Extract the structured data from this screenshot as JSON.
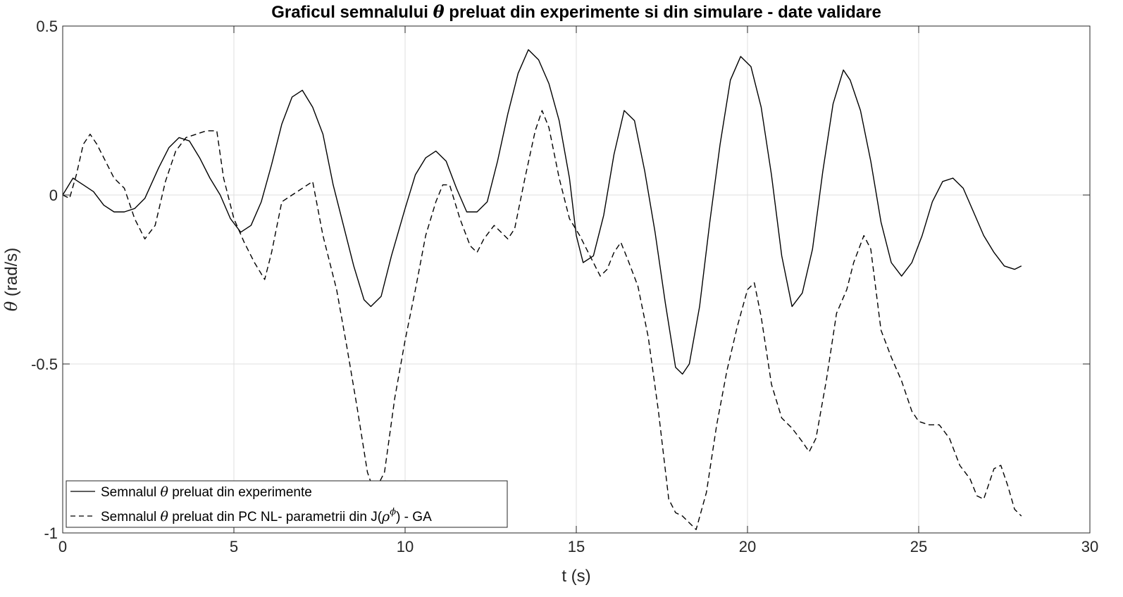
{
  "chart_data": {
    "type": "line",
    "title_parts": {
      "before": "Graficul semnalului ",
      "symbol": "θ",
      "after": " preluat din experimente si din simulare - date validare"
    },
    "xlabel": "t (s)",
    "ylabel_parts": {
      "symbol": "θ",
      "text": " (rad/s)"
    },
    "xlim": [
      0,
      30
    ],
    "ylim": [
      -1,
      0.5
    ],
    "xticks": [
      0,
      5,
      10,
      15,
      20,
      25,
      30
    ],
    "xtick_labels": [
      "0",
      "5",
      "10",
      "15",
      "20",
      "25",
      "30"
    ],
    "yticks": [
      0.5,
      0,
      -0.5,
      -1
    ],
    "ytick_labels": [
      "0.5",
      "0",
      "-0.5",
      "-1"
    ],
    "grid": true,
    "legend_position": "bottom-left",
    "series": [
      {
        "name_parts": {
          "before": "Semnalul ",
          "symbol": "θ",
          "after": " preluat din experimente"
        },
        "color": "#000000",
        "style": "solid",
        "points": [
          [
            0,
            0
          ],
          [
            0.3,
            0.05
          ],
          [
            0.6,
            0.03
          ],
          [
            0.9,
            0.01
          ],
          [
            1.2,
            -0.03
          ],
          [
            1.5,
            -0.05
          ],
          [
            1.8,
            -0.05
          ],
          [
            2.1,
            -0.04
          ],
          [
            2.4,
            -0.01
          ],
          [
            2.8,
            0.08
          ],
          [
            3.1,
            0.14
          ],
          [
            3.4,
            0.17
          ],
          [
            3.7,
            0.16
          ],
          [
            4.0,
            0.11
          ],
          [
            4.3,
            0.05
          ],
          [
            4.6,
            0.0
          ],
          [
            4.9,
            -0.07
          ],
          [
            5.2,
            -0.11
          ],
          [
            5.5,
            -0.09
          ],
          [
            5.8,
            -0.02
          ],
          [
            6.1,
            0.09
          ],
          [
            6.4,
            0.21
          ],
          [
            6.7,
            0.29
          ],
          [
            7.0,
            0.31
          ],
          [
            7.3,
            0.26
          ],
          [
            7.6,
            0.18
          ],
          [
            7.9,
            0.03
          ],
          [
            8.2,
            -0.09
          ],
          [
            8.5,
            -0.21
          ],
          [
            8.8,
            -0.31
          ],
          [
            9.0,
            -0.33
          ],
          [
            9.3,
            -0.3
          ],
          [
            9.6,
            -0.18
          ],
          [
            10.0,
            -0.04
          ],
          [
            10.3,
            0.06
          ],
          [
            10.6,
            0.11
          ],
          [
            10.9,
            0.13
          ],
          [
            11.2,
            0.1
          ],
          [
            11.5,
            0.02
          ],
          [
            11.8,
            -0.05
          ],
          [
            12.1,
            -0.05
          ],
          [
            12.4,
            -0.02
          ],
          [
            12.7,
            0.1
          ],
          [
            13.0,
            0.24
          ],
          [
            13.3,
            0.36
          ],
          [
            13.6,
            0.43
          ],
          [
            13.9,
            0.4
          ],
          [
            14.2,
            0.33
          ],
          [
            14.5,
            0.22
          ],
          [
            14.8,
            0.05
          ],
          [
            15.0,
            -0.12
          ],
          [
            15.2,
            -0.2
          ],
          [
            15.5,
            -0.18
          ],
          [
            15.8,
            -0.06
          ],
          [
            16.1,
            0.12
          ],
          [
            16.4,
            0.25
          ],
          [
            16.7,
            0.22
          ],
          [
            17.0,
            0.07
          ],
          [
            17.3,
            -0.11
          ],
          [
            17.6,
            -0.32
          ],
          [
            17.9,
            -0.51
          ],
          [
            18.1,
            -0.53
          ],
          [
            18.3,
            -0.5
          ],
          [
            18.6,
            -0.33
          ],
          [
            18.9,
            -0.08
          ],
          [
            19.2,
            0.15
          ],
          [
            19.5,
            0.34
          ],
          [
            19.8,
            0.41
          ],
          [
            20.1,
            0.38
          ],
          [
            20.4,
            0.26
          ],
          [
            20.7,
            0.06
          ],
          [
            21.0,
            -0.18
          ],
          [
            21.3,
            -0.33
          ],
          [
            21.6,
            -0.29
          ],
          [
            21.9,
            -0.16
          ],
          [
            22.2,
            0.07
          ],
          [
            22.5,
            0.27
          ],
          [
            22.8,
            0.37
          ],
          [
            23.0,
            0.34
          ],
          [
            23.3,
            0.25
          ],
          [
            23.6,
            0.1
          ],
          [
            23.9,
            -0.08
          ],
          [
            24.2,
            -0.2
          ],
          [
            24.5,
            -0.24
          ],
          [
            24.8,
            -0.2
          ],
          [
            25.1,
            -0.12
          ],
          [
            25.4,
            -0.02
          ],
          [
            25.7,
            0.04
          ],
          [
            26.0,
            0.05
          ],
          [
            26.3,
            0.02
          ],
          [
            26.6,
            -0.05
          ],
          [
            26.9,
            -0.12
          ],
          [
            27.2,
            -0.17
          ],
          [
            27.5,
            -0.21
          ],
          [
            27.8,
            -0.22
          ],
          [
            28.0,
            -0.21
          ]
        ]
      },
      {
        "name_parts": {
          "before": "Semnalul ",
          "symbol": "θ",
          "after": " preluat din PC NL- parametrii din J(",
          "sym2": "ρ",
          "sup": "ϕ",
          "after2": ") - GA"
        },
        "color": "#000000",
        "style": "dashed",
        "points": [
          [
            0,
            0
          ],
          [
            0.2,
            -0.01
          ],
          [
            0.4,
            0.06
          ],
          [
            0.6,
            0.15
          ],
          [
            0.8,
            0.18
          ],
          [
            1.0,
            0.15
          ],
          [
            1.3,
            0.09
          ],
          [
            1.5,
            0.05
          ],
          [
            1.8,
            0.02
          ],
          [
            2.1,
            -0.07
          ],
          [
            2.4,
            -0.13
          ],
          [
            2.7,
            -0.09
          ],
          [
            3.0,
            0.04
          ],
          [
            3.3,
            0.13
          ],
          [
            3.6,
            0.17
          ],
          [
            3.9,
            0.18
          ],
          [
            4.2,
            0.19
          ],
          [
            4.5,
            0.19
          ],
          [
            4.7,
            0.05
          ],
          [
            5.0,
            -0.07
          ],
          [
            5.3,
            -0.14
          ],
          [
            5.6,
            -0.2
          ],
          [
            5.9,
            -0.25
          ],
          [
            6.1,
            -0.17
          ],
          [
            6.4,
            -0.02
          ],
          [
            6.7,
            0.0
          ],
          [
            7.0,
            0.02
          ],
          [
            7.3,
            0.04
          ],
          [
            7.6,
            -0.12
          ],
          [
            8.0,
            -0.28
          ],
          [
            8.3,
            -0.45
          ],
          [
            8.6,
            -0.63
          ],
          [
            8.9,
            -0.82
          ],
          [
            9.1,
            -0.88
          ],
          [
            9.4,
            -0.82
          ],
          [
            9.7,
            -0.6
          ],
          [
            10.0,
            -0.43
          ],
          [
            10.3,
            -0.28
          ],
          [
            10.6,
            -0.12
          ],
          [
            10.9,
            -0.02
          ],
          [
            11.1,
            0.03
          ],
          [
            11.3,
            0.03
          ],
          [
            11.6,
            -0.07
          ],
          [
            11.9,
            -0.15
          ],
          [
            12.1,
            -0.17
          ],
          [
            12.3,
            -0.13
          ],
          [
            12.6,
            -0.09
          ],
          [
            12.8,
            -0.11
          ],
          [
            13.0,
            -0.13
          ],
          [
            13.2,
            -0.1
          ],
          [
            13.5,
            0.05
          ],
          [
            13.8,
            0.19
          ],
          [
            14.0,
            0.25
          ],
          [
            14.2,
            0.2
          ],
          [
            14.5,
            0.05
          ],
          [
            14.8,
            -0.07
          ],
          [
            15.1,
            -0.12
          ],
          [
            15.4,
            -0.18
          ],
          [
            15.7,
            -0.24
          ],
          [
            15.9,
            -0.22
          ],
          [
            16.1,
            -0.17
          ],
          [
            16.3,
            -0.14
          ],
          [
            16.5,
            -0.19
          ],
          [
            16.8,
            -0.27
          ],
          [
            17.1,
            -0.42
          ],
          [
            17.4,
            -0.64
          ],
          [
            17.7,
            -0.9
          ],
          [
            17.9,
            -0.94
          ],
          [
            18.1,
            -0.95
          ],
          [
            18.3,
            -0.97
          ],
          [
            18.5,
            -0.99
          ],
          [
            18.8,
            -0.88
          ],
          [
            19.1,
            -0.68
          ],
          [
            19.4,
            -0.52
          ],
          [
            19.7,
            -0.39
          ],
          [
            20.0,
            -0.28
          ],
          [
            20.2,
            -0.26
          ],
          [
            20.4,
            -0.36
          ],
          [
            20.7,
            -0.56
          ],
          [
            21.0,
            -0.66
          ],
          [
            21.3,
            -0.69
          ],
          [
            21.6,
            -0.73
          ],
          [
            21.8,
            -0.76
          ],
          [
            22.0,
            -0.72
          ],
          [
            22.3,
            -0.55
          ],
          [
            22.6,
            -0.35
          ],
          [
            22.9,
            -0.28
          ],
          [
            23.1,
            -0.2
          ],
          [
            23.4,
            -0.12
          ],
          [
            23.6,
            -0.16
          ],
          [
            23.9,
            -0.4
          ],
          [
            24.2,
            -0.48
          ],
          [
            24.5,
            -0.55
          ],
          [
            24.8,
            -0.64
          ],
          [
            25.0,
            -0.67
          ],
          [
            25.3,
            -0.68
          ],
          [
            25.6,
            -0.68
          ],
          [
            25.9,
            -0.72
          ],
          [
            26.2,
            -0.8
          ],
          [
            26.5,
            -0.84
          ],
          [
            26.7,
            -0.89
          ],
          [
            26.9,
            -0.9
          ],
          [
            27.2,
            -0.81
          ],
          [
            27.4,
            -0.8
          ],
          [
            27.6,
            -0.86
          ],
          [
            27.8,
            -0.93
          ],
          [
            28.0,
            -0.95
          ]
        ]
      }
    ]
  }
}
